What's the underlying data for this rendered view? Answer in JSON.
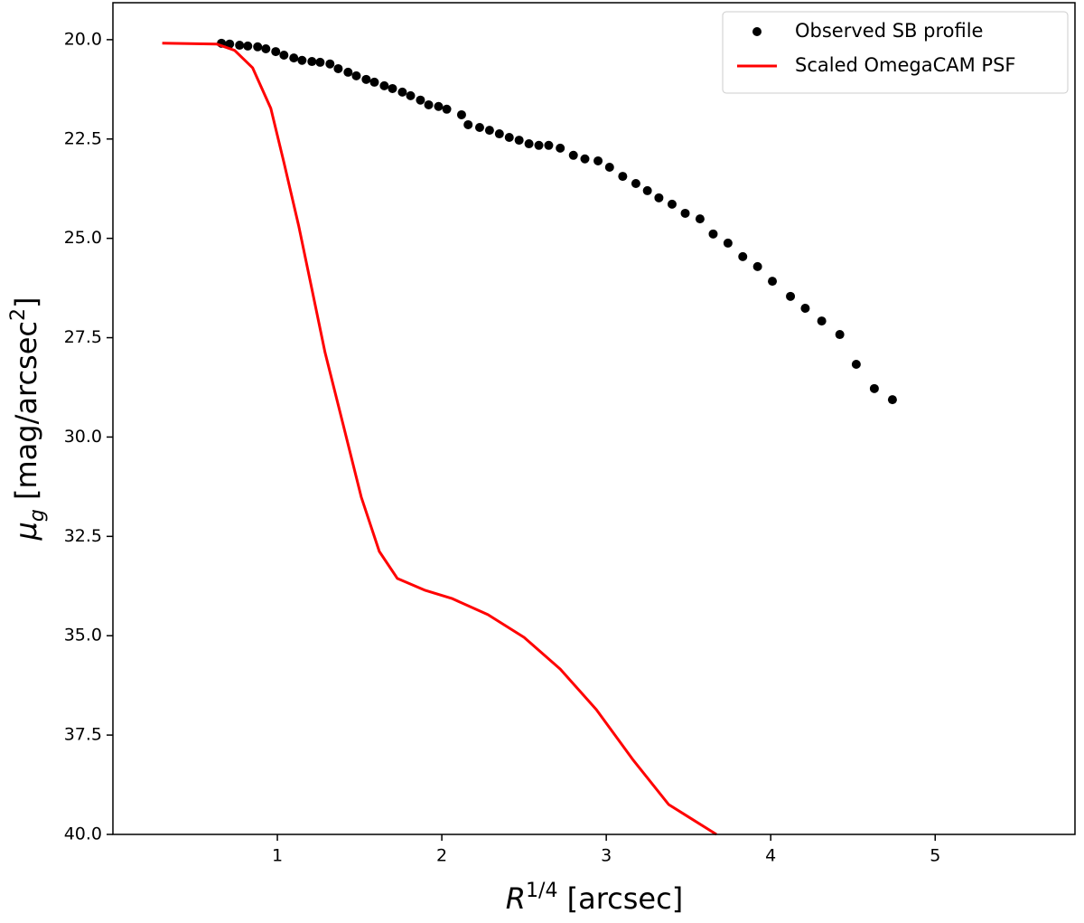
{
  "chart_data": {
    "type": "scatter",
    "xlabel": [
      "R",
      "1/4",
      " [arcsec]"
    ],
    "ylabel": [
      "μ",
      "g",
      " [mag/arcsec",
      "2",
      "]"
    ],
    "xlim": [
      0,
      5.85
    ],
    "ylim": [
      40,
      19.07
    ],
    "xticks": [
      1,
      2,
      3,
      4,
      5
    ],
    "yticks": [
      {
        "value": 20,
        "label": "20.0"
      },
      22.5,
      {
        "value": 25,
        "label": "25.0"
      },
      27.5,
      {
        "value": 30,
        "label": "30.0"
      },
      32.5,
      {
        "value": 35,
        "label": "35.0"
      },
      37.5,
      {
        "value": 40,
        "label": "40.0"
      }
    ],
    "legend": "upper right",
    "series": [
      {
        "name": "Observed SB profile",
        "color": "#000000",
        "style": "points",
        "x": [
          0.66,
          0.71,
          0.77,
          0.82,
          0.88,
          0.93,
          0.99,
          1.04,
          1.1,
          1.15,
          1.21,
          1.26,
          1.32,
          1.37,
          1.43,
          1.48,
          1.54,
          1.59,
          1.65,
          1.7,
          1.76,
          1.81,
          1.87,
          1.92,
          1.98,
          2.03,
          2.12,
          2.16,
          2.23,
          2.29,
          2.35,
          2.41,
          2.47,
          2.53,
          2.59,
          2.65,
          2.72,
          2.8,
          2.87,
          2.95,
          3.02,
          3.1,
          3.18,
          3.25,
          3.32,
          3.4,
          3.48,
          3.57,
          3.65,
          3.74,
          3.83,
          3.92,
          4.01,
          4.12,
          4.21,
          4.31,
          4.42,
          4.52,
          4.63,
          4.74
        ],
        "values": [
          20.09,
          20.11,
          20.14,
          20.16,
          20.18,
          20.23,
          20.3,
          20.39,
          20.46,
          20.52,
          20.55,
          20.57,
          20.61,
          20.73,
          20.82,
          20.91,
          21.0,
          21.07,
          21.16,
          21.23,
          21.32,
          21.41,
          21.52,
          21.64,
          21.68,
          21.75,
          21.89,
          22.14,
          22.21,
          22.28,
          22.37,
          22.46,
          22.53,
          22.62,
          22.66,
          22.66,
          22.73,
          22.91,
          23.0,
          23.05,
          23.21,
          23.44,
          23.62,
          23.8,
          23.98,
          24.14,
          24.37,
          24.51,
          24.89,
          25.12,
          25.46,
          25.71,
          26.08,
          26.46,
          26.76,
          27.08,
          27.42,
          28.17,
          28.78,
          29.06
        ]
      },
      {
        "name": "Scaled OmegaCAM PSF",
        "color": "#ff0000",
        "style": "line",
        "x": [
          0.3,
          0.63,
          0.74,
          0.85,
          0.96,
          1.04,
          1.13,
          1.21,
          1.29,
          1.4,
          1.51,
          1.62,
          1.73,
          1.9,
          2.06,
          2.28,
          2.5,
          2.72,
          2.94,
          3.16,
          3.38,
          3.67
        ],
        "values": [
          20.09,
          20.11,
          20.27,
          20.71,
          21.73,
          23.09,
          24.69,
          26.28,
          27.87,
          29.69,
          31.51,
          32.88,
          33.56,
          33.86,
          34.06,
          34.47,
          35.04,
          35.84,
          36.86,
          38.11,
          39.25,
          40.0
        ]
      }
    ]
  }
}
